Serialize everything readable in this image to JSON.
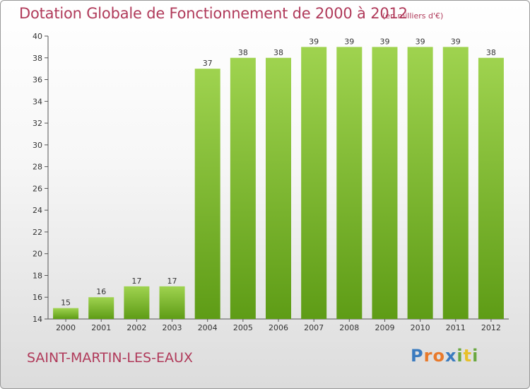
{
  "title": "Dotation Globale de Fonctionnement de 2000 à 2012",
  "units": "(en milliers d'€)",
  "commune": "SAINT-MARTIN-LES-EAUX",
  "logo": {
    "text": "Proxiti",
    "colors": [
      "#3b7bbf",
      "#e8792a",
      "#e8792a",
      "#3b7bbf",
      "#6aa840",
      "#e8c02a",
      "#6aa840"
    ]
  },
  "colors": {
    "bar_top": "#9fd34f",
    "bar_bottom": "#5e9c16",
    "text": "#b03a5a"
  },
  "chart_data": {
    "type": "bar",
    "categories": [
      "2000",
      "2001",
      "2002",
      "2003",
      "2004",
      "2005",
      "2006",
      "2007",
      "2008",
      "2009",
      "2010",
      "2011",
      "2012"
    ],
    "values": [
      15,
      16,
      17,
      17,
      37,
      38,
      38,
      39,
      39,
      39,
      39,
      39,
      38
    ],
    "ylim": [
      14,
      40
    ],
    "yticks": [
      14,
      16,
      18,
      20,
      22,
      24,
      26,
      28,
      30,
      32,
      34,
      36,
      38,
      40
    ],
    "grid": false,
    "data_labels": true
  }
}
